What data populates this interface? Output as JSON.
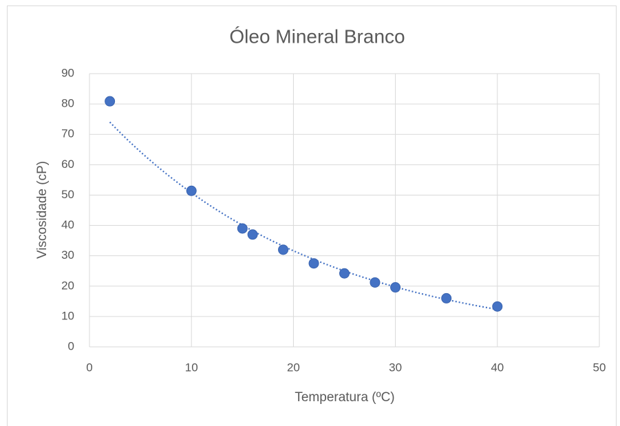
{
  "chart_data": {
    "type": "scatter",
    "title": "Óleo Mineral Branco",
    "x_label": "Temperatura (ºC)",
    "y_label": "Viscosidade (cP)",
    "series": [
      {
        "color": "#4472c4",
        "x": [
          2,
          10,
          15,
          16,
          19,
          22,
          25,
          28,
          30,
          35,
          40
        ],
        "values": [
          80.9,
          51.4,
          39,
          37,
          32,
          27.5,
          24.2,
          21.2,
          19.6,
          16,
          13.3
        ]
      }
    ],
    "trendline": {
      "type": "exponential",
      "color": "#4472c4"
    },
    "xlim": [
      0,
      50
    ],
    "xticks": [
      0,
      10,
      20,
      30,
      40,
      50
    ],
    "ylim": [
      0,
      90
    ],
    "yticks": [
      0,
      10,
      20,
      30,
      40,
      50,
      60,
      70,
      80,
      90
    ],
    "grid": true
  }
}
